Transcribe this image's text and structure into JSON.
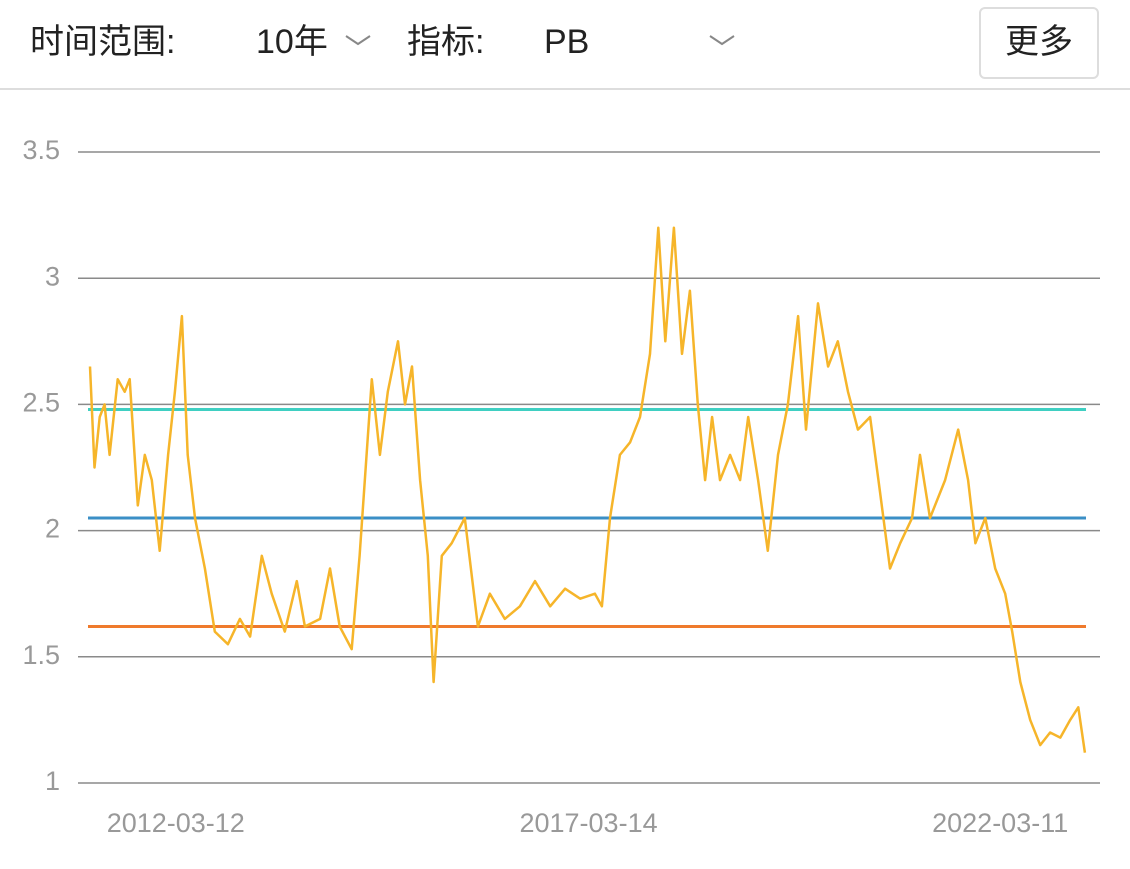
{
  "controls": {
    "time_range_label": "时间范围:",
    "time_range": "10年",
    "metric_label": "指标:",
    "metric": "PB",
    "more": "更多"
  },
  "chart_data": {
    "type": "line",
    "x": [
      "2011-02-26",
      "2011-03-18",
      "2011-04-10",
      "2011-05-02",
      "2011-05-24",
      "2011-06-29",
      "2011-07-30",
      "2011-08-21",
      "2011-09-26",
      "2011-10-27",
      "2011-11-27",
      "2012-01-01",
      "2012-02-07",
      "2012-03-08",
      "2012-04-08",
      "2012-05-04",
      "2012-06-05",
      "2012-07-19",
      "2012-09-01",
      "2012-10-29",
      "2012-12-21",
      "2013-02-04",
      "2013-03-28",
      "2013-05-11",
      "2013-07-08",
      "2013-08-30",
      "2013-10-05",
      "2013-12-11",
      "2014-01-24",
      "2014-03-08",
      "2014-04-30",
      "2014-06-04",
      "2014-07-28",
      "2014-09-02",
      "2014-10-07",
      "2014-11-21",
      "2014-12-22",
      "2015-01-22",
      "2015-02-27",
      "2015-04-02",
      "2015-04-28",
      "2015-06-03",
      "2015-07-17",
      "2015-09-13",
      "2015-11-10",
      "2016-01-02",
      "2016-03-08",
      "2016-05-14",
      "2016-07-20",
      "2016-09-25",
      "2016-11-30",
      "2017-02-05",
      "2017-04-11",
      "2017-05-12",
      "2017-06-17",
      "2017-07-31",
      "2017-09-14",
      "2017-10-28",
      "2017-12-11",
      "2018-01-17",
      "2018-02-17",
      "2018-03-27",
      "2018-05-02",
      "2018-06-06",
      "2018-07-11",
      "2018-08-12",
      "2018-09-12",
      "2018-10-17",
      "2018-12-01",
      "2019-01-14",
      "2019-02-19",
      "2019-04-04",
      "2019-05-17",
      "2019-07-01",
      "2019-08-14",
      "2019-09-28",
      "2019-11-02",
      "2019-12-25",
      "2020-02-08",
      "2020-03-22",
      "2020-05-06",
      "2020-06-19",
      "2020-08-12",
      "2020-09-25",
      "2020-11-08",
      "2020-12-23",
      "2021-02-14",
      "2021-03-21",
      "2021-05-04",
      "2021-07-10",
      "2021-09-06",
      "2021-10-20",
      "2021-11-21",
      "2022-01-04",
      "2022-02-17",
      "2022-04-02",
      "2022-05-03",
      "2022-06-08",
      "2022-07-22",
      "2022-09-04",
      "2022-10-18",
      "2022-12-02",
      "2023-01-15",
      "2023-02-20",
      "2023-03-21"
    ],
    "values": [
      2.65,
      2.25,
      2.45,
      2.5,
      2.3,
      2.6,
      2.55,
      2.6,
      2.1,
      2.3,
      2.2,
      1.92,
      2.3,
      2.55,
      2.85,
      2.3,
      2.05,
      1.85,
      1.6,
      1.55,
      1.65,
      1.58,
      1.9,
      1.75,
      1.6,
      1.8,
      1.62,
      1.65,
      1.85,
      1.62,
      1.53,
      1.9,
      2.6,
      2.3,
      2.55,
      2.75,
      2.5,
      2.65,
      2.2,
      1.9,
      1.4,
      1.9,
      1.95,
      2.05,
      1.62,
      1.75,
      1.65,
      1.7,
      1.8,
      1.7,
      1.77,
      1.73,
      1.75,
      1.7,
      2.05,
      2.3,
      2.35,
      2.45,
      2.7,
      3.2,
      2.75,
      3.2,
      2.7,
      2.95,
      2.5,
      2.2,
      2.45,
      2.2,
      2.3,
      2.2,
      2.45,
      2.2,
      1.92,
      2.3,
      2.5,
      2.85,
      2.4,
      2.9,
      2.65,
      2.75,
      2.55,
      2.4,
      2.45,
      2.15,
      1.85,
      1.95,
      2.05,
      2.3,
      2.05,
      2.2,
      2.4,
      2.2,
      1.95,
      2.05,
      1.85,
      1.75,
      1.6,
      1.4,
      1.25,
      1.15,
      1.2,
      1.18,
      1.25,
      1.3,
      1.12
    ],
    "color": "#f6b52a",
    "reference_lines": [
      {
        "value": 2.48,
        "color": "#3fcfc2"
      },
      {
        "value": 2.05,
        "color": "#3b8fc6"
      },
      {
        "value": 1.62,
        "color": "#ef7a2c"
      }
    ],
    "xlim": [
      "2011-01-04",
      "2023-05-27"
    ],
    "xticks": [
      "2012-03-12",
      "2017-03-14",
      "2022-03-11"
    ],
    "ylim": [
      1,
      3.5
    ],
    "yticks": [
      1,
      1.5,
      2,
      2.5,
      3,
      3.5
    ],
    "grid": true
  }
}
